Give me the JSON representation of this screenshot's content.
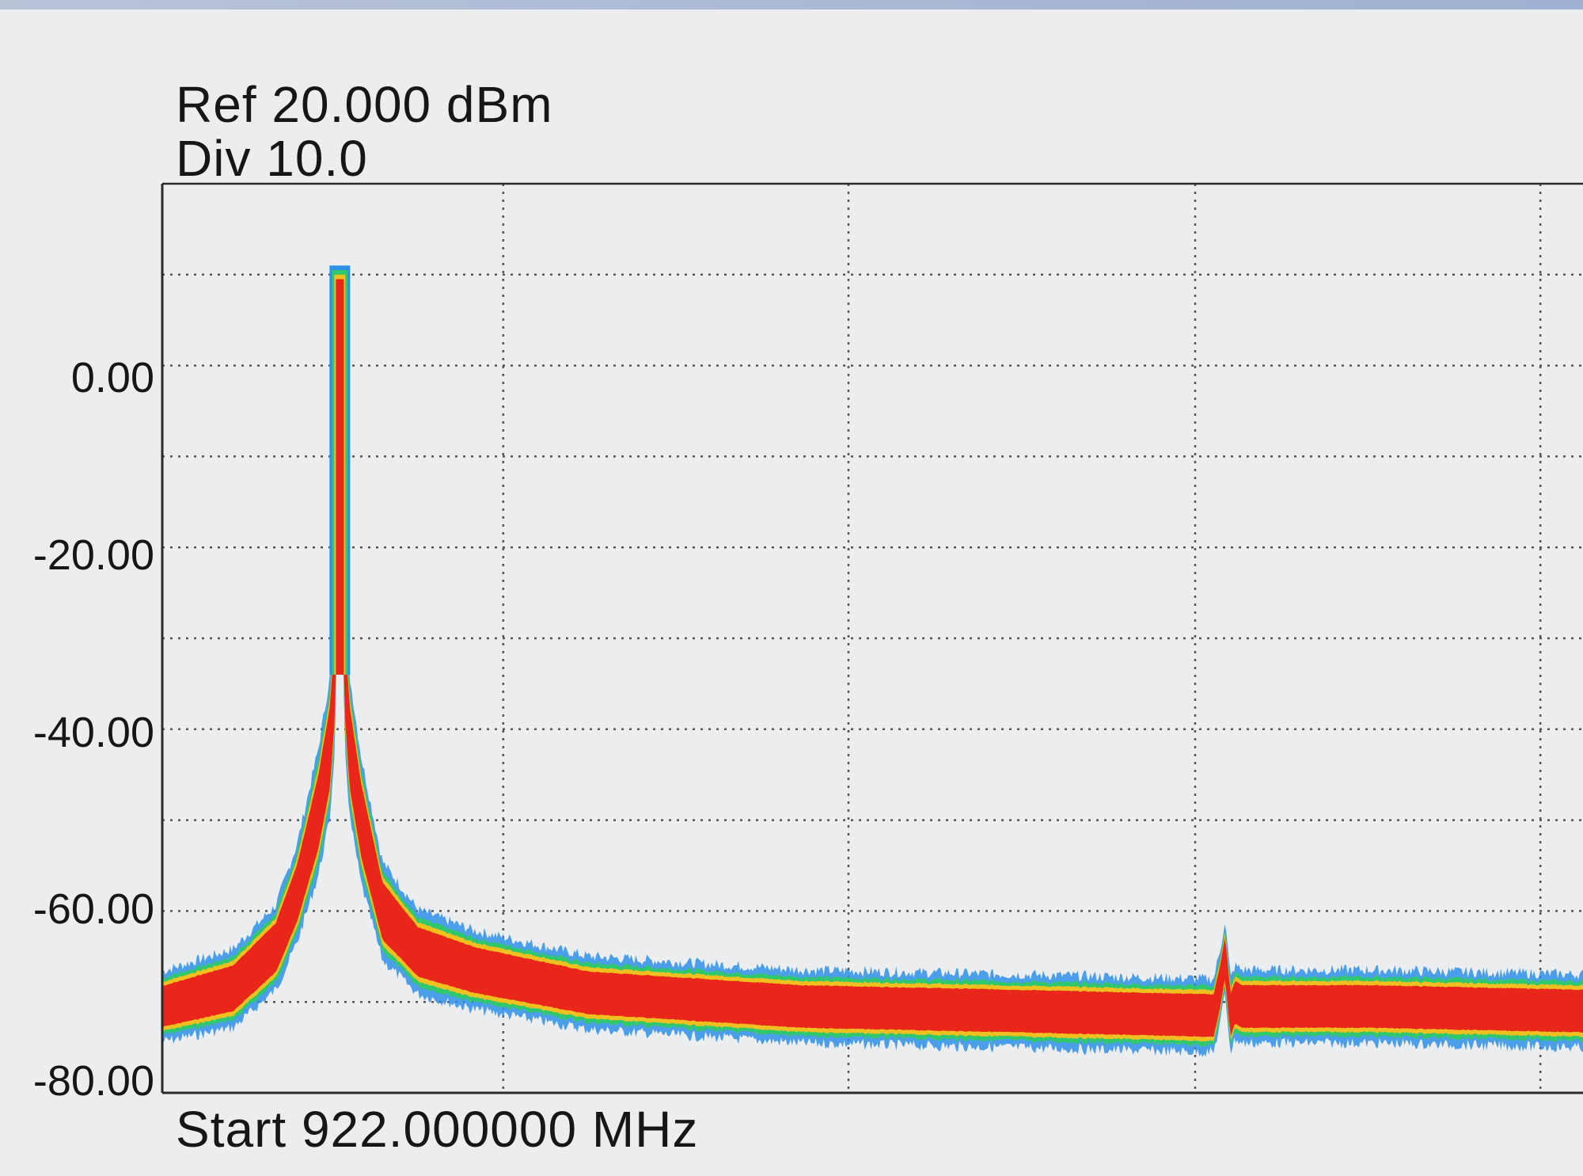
{
  "header": {
    "ref_label": "Ref 20.000 dBm",
    "div_label": "Div 10.0"
  },
  "footer": {
    "start_label": "Start 922.000000 MHz"
  },
  "colors": {
    "background": "#ecedef",
    "grid": "#555555",
    "trace_core": "#e8261a",
    "trace_mid": "#f0c020",
    "trace_green": "#2fc86a",
    "trace_outer": "#2f8fe8"
  },
  "chart_data": {
    "type": "line",
    "title": "",
    "xlabel": "",
    "ylabel": "",
    "ylim": [
      -80,
      20
    ],
    "y_ticks": [
      {
        "value": 0,
        "label": "0.00"
      },
      {
        "value": -20,
        "label": "-20.00"
      },
      {
        "value": -40,
        "label": "-40.00"
      },
      {
        "value": -60,
        "label": "-60.00"
      },
      {
        "value": -80,
        "label": "-80.00"
      }
    ],
    "x_divisions": 4,
    "y_divisions": 10,
    "grid": true,
    "series": [
      {
        "x": [
          0,
          0.05,
          0.08,
          0.095,
          0.11,
          0.118,
          0.122,
          0.125,
          0.128,
          0.132,
          0.14,
          0.155,
          0.18,
          0.22,
          0.3,
          0.45,
          0.6,
          0.74,
          0.745,
          0.748,
          0.752,
          0.755,
          0.76,
          0.85,
          1.0
        ],
        "y": [
          -70.5,
          -68.5,
          -64,
          -58,
          -49,
          -42,
          -33,
          11,
          -33,
          -42,
          -50,
          -60,
          -64.5,
          -66.5,
          -69,
          -70.5,
          -71,
          -71.5,
          -68,
          -65,
          -71.5,
          -70,
          -70.5,
          -70.5,
          -71
        ],
        "noise_width": [
          2.5,
          2.8,
          3,
          3.5,
          4.5,
          5,
          5,
          1,
          5,
          5,
          4.5,
          3.5,
          3,
          2.8,
          2.6,
          2.6,
          2.6,
          2.6,
          2.6,
          2.6,
          2.6,
          2.6,
          2.6,
          2.6,
          2.6
        ]
      }
    ]
  }
}
